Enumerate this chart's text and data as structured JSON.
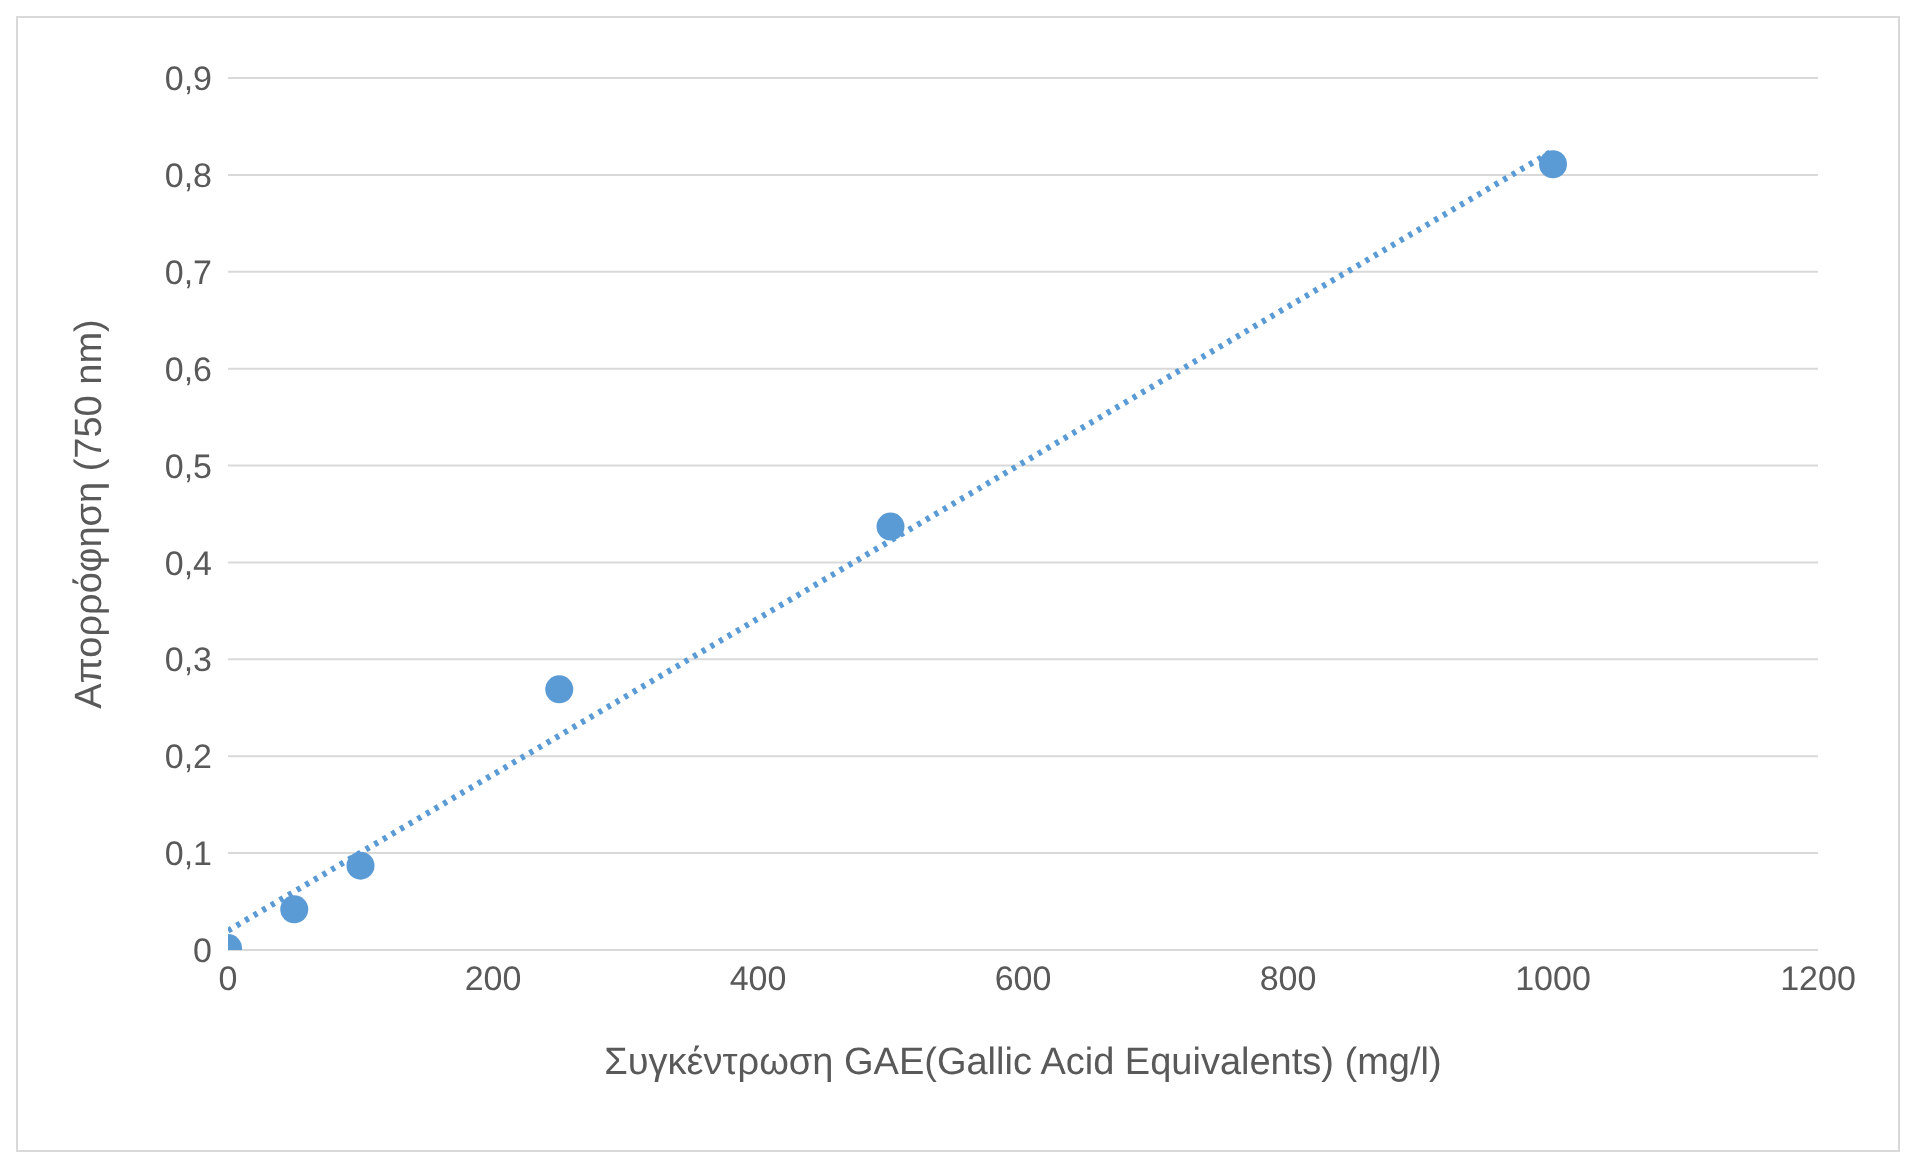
{
  "chart_data": {
    "type": "scatter",
    "xlabel": "Συγκέντρωση GAE(Gallic Acid Equivalents) (mg/l)",
    "ylabel": "Απορρόφηση (750 nm)",
    "series": [
      {
        "color": "#5b9bd5",
        "marker": "circle",
        "x": [
          0,
          50,
          100,
          250,
          500,
          1000
        ],
        "values": [
          0.002,
          0.042,
          0.087,
          0.269,
          0.437,
          0.811
        ]
      },
      {
        "type": "line",
        "color": "#5b9bd5",
        "marker": "none",
        "line_style": "dotted",
        "x": [
          0,
          1000
        ],
        "values": [
          0.02,
          0.825
        ]
      }
    ],
    "xlim": [
      0,
      1200
    ],
    "xticks": [
      0,
      200,
      400,
      600,
      800,
      1000,
      1200
    ],
    "ylim": [
      0,
      0.9
    ],
    "yticks": [
      0,
      {
        "value": 0.1,
        "label": "0,1"
      },
      {
        "value": 0.2,
        "label": "0,2"
      },
      {
        "value": 0.3,
        "label": "0,3"
      },
      {
        "value": 0.4,
        "label": "0,4"
      },
      {
        "value": 0.5,
        "label": "0,5"
      },
      {
        "value": 0.6,
        "label": "0,6"
      },
      {
        "value": 0.7,
        "label": "0,7"
      },
      {
        "value": 0.8,
        "label": "0,8"
      },
      {
        "value": 0.9,
        "label": "0,9"
      }
    ],
    "grid": "y",
    "legend": false
  }
}
